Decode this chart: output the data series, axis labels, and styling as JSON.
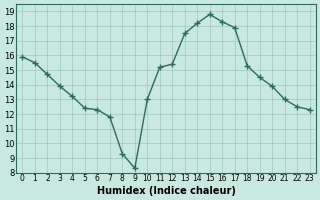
{
  "x": [
    0,
    1,
    2,
    3,
    4,
    5,
    6,
    7,
    8,
    9,
    10,
    11,
    12,
    13,
    14,
    15,
    16,
    17,
    18,
    19,
    20,
    21,
    22,
    23
  ],
  "y": [
    15.9,
    15.5,
    14.7,
    13.9,
    13.2,
    12.4,
    12.3,
    11.8,
    9.3,
    8.3,
    13.0,
    15.2,
    15.4,
    17.5,
    18.2,
    18.8,
    18.3,
    17.9,
    15.3,
    14.5,
    13.9,
    13.0,
    12.5,
    12.3
  ],
  "line_color": "#2e6b5e",
  "marker": "+",
  "background_color": "#c8e8e0",
  "grid_color": "#a0c8c0",
  "xlabel": "Humidex (Indice chaleur)",
  "ylabel": "",
  "ylim": [
    8,
    19.5
  ],
  "xlim": [
    -0.5,
    23.5
  ],
  "yticks": [
    8,
    9,
    10,
    11,
    12,
    13,
    14,
    15,
    16,
    17,
    18,
    19
  ],
  "xticks": [
    0,
    1,
    2,
    3,
    4,
    5,
    6,
    7,
    8,
    9,
    10,
    11,
    12,
    13,
    14,
    15,
    16,
    17,
    18,
    19,
    20,
    21,
    22,
    23
  ]
}
